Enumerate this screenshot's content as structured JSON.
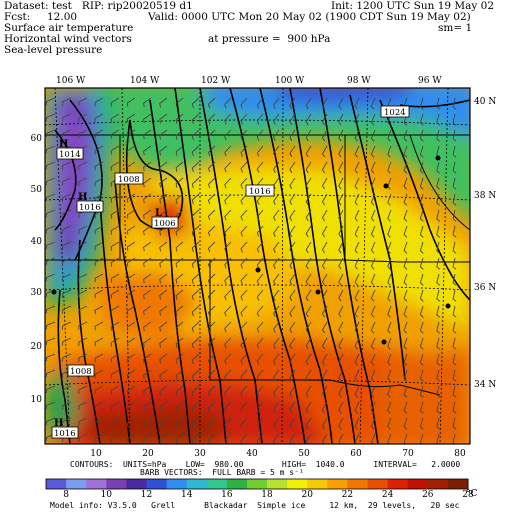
{
  "header": {
    "dataset_line": "Dataset: test   RIP: rip20020519 d1",
    "init_line": "Init: 1200 UTC Sun 19 May 02",
    "fcst_line": "Fcst:     12.00",
    "valid_line": "Valid: 0000 UTC Mon 20 May 02 (1900 CDT Sun 19 May 02)",
    "field1": "Surface air temperature",
    "field2": "Horizontal wind vectors",
    "field3": "Sea-level pressure",
    "sm_line": "sm= 1",
    "pressure_line": "at pressure =  900 hPa"
  },
  "map": {
    "top_lon_labels": [
      "106 W",
      "104 W",
      "102 W",
      "100 W",
      "98 W",
      "96 W"
    ],
    "right_lat_labels": [
      "40 N",
      "38 N",
      "36 N",
      "34 N"
    ],
    "left_grid_labels": [
      "60",
      "50",
      "40",
      "30",
      "20",
      "10"
    ],
    "bottom_grid_labels": [
      "10",
      "20",
      "30",
      "40",
      "50",
      "60",
      "70",
      "80"
    ],
    "pressure_labels": [
      "1024",
      "1008",
      "1014",
      "1016",
      "1016",
      "1006",
      "1008",
      "1016"
    ],
    "high_low_marks": [
      "H",
      "H",
      "L",
      "H"
    ]
  },
  "footer": {
    "contours_line": "CONTOURS:  UNITS=hPa    LOW=  980.00        HIGH=  1040.0      INTERVAL=   2.0000",
    "barbs_line": "BARB VECTORS:  FULL BARB = 5 m s⁻¹",
    "model_info": "Model info: V3.5.0   Grell      Blackadar  Simple ice     12 km,  29 levels,   20 sec"
  },
  "colorbar": {
    "labels": [
      "8",
      "10",
      "12",
      "14",
      "16",
      "18",
      "20",
      "22",
      "24",
      "26",
      "28"
    ],
    "unit": "°C",
    "colors": [
      "#5a5ad8",
      "#7b9cf0",
      "#9e72d6",
      "#7a3fb0",
      "#4a2aa0",
      "#3050d8",
      "#2f8ef0",
      "#2fb8d0",
      "#30c890",
      "#30b040",
      "#70cc30",
      "#b8e030",
      "#f0f000",
      "#f8c800",
      "#f8a000",
      "#f07800",
      "#e85000",
      "#e02000",
      "#c01000",
      "#a02000",
      "#7a2000"
    ]
  }
}
